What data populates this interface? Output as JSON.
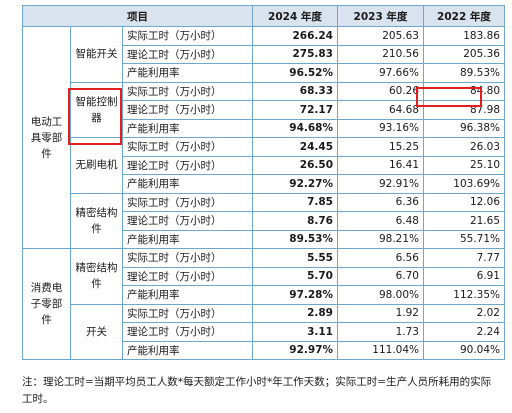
{
  "table": {
    "header": [
      "项目",
      "2024 年度",
      "2023 年度",
      "2022 年度"
    ],
    "groups": [
      {
        "name": "电动工具零部件",
        "subs": [
          {
            "name": "智能开关",
            "rows": [
              {
                "metric": "实际工时（万小时）",
                "v2024": "266.24",
                "v2023": "205.63",
                "v2022": "183.86"
              },
              {
                "metric": "理论工时（万小时）",
                "v2024": "275.83",
                "v2023": "210.56",
                "v2022": "205.36"
              },
              {
                "metric": "产能利用率",
                "v2024": "96.52%",
                "v2023": "97.66%",
                "v2022": "89.53%"
              }
            ]
          },
          {
            "name": "智能控制器",
            "rows": [
              {
                "metric": "实际工时（万小时）",
                "v2024": "68.33",
                "v2023": "60.26",
                "v2022": "84.80"
              },
              {
                "metric": "理论工时（万小时）",
                "v2024": "72.17",
                "v2023": "64.68",
                "v2022": "87.98"
              },
              {
                "metric": "产能利用率",
                "v2024": "94.68%",
                "v2023": "93.16%",
                "v2022": "96.38%"
              }
            ]
          },
          {
            "name": "无刷电机",
            "rows": [
              {
                "metric": "实际工时（万小时）",
                "v2024": "24.45",
                "v2023": "15.25",
                "v2022": "26.03"
              },
              {
                "metric": "理论工时（万小时）",
                "v2024": "26.50",
                "v2023": "16.41",
                "v2022": "25.10"
              },
              {
                "metric": "产能利用率",
                "v2024": "92.27%",
                "v2023": "92.91%",
                "v2022": "103.69%"
              }
            ]
          },
          {
            "name": "精密结构件",
            "rows": [
              {
                "metric": "实际工时（万小时）",
                "v2024": "7.85",
                "v2023": "6.36",
                "v2022": "12.06"
              },
              {
                "metric": "理论工时（万小时）",
                "v2024": "8.76",
                "v2023": "6.48",
                "v2022": "21.65"
              },
              {
                "metric": "产能利用率",
                "v2024": "89.53%",
                "v2023": "98.21%",
                "v2022": "55.71%"
              }
            ]
          }
        ]
      },
      {
        "name": "消费电子零部件",
        "subs": [
          {
            "name": "精密结构件",
            "rows": [
              {
                "metric": "实际工时（万小时）",
                "v2024": "5.55",
                "v2023": "6.56",
                "v2022": "7.77"
              },
              {
                "metric": "理论工时（万小时）",
                "v2024": "5.70",
                "v2023": "6.70",
                "v2022": "6.91"
              },
              {
                "metric": "产能利用率",
                "v2024": "97.28%",
                "v2023": "98.00%",
                "v2022": "112.35%"
              }
            ]
          },
          {
            "name": "开关",
            "rows": [
              {
                "metric": "实际工时（万小时）",
                "v2024": "2.89",
                "v2023": "1.92",
                "v2022": "2.02"
              },
              {
                "metric": "理论工时（万小时）",
                "v2024": "3.11",
                "v2023": "1.73",
                "v2022": "2.24"
              },
              {
                "metric": "产能利用率",
                "v2024": "92.97%",
                "v2023": "111.04%",
                "v2022": "90.04%"
              }
            ]
          }
        ]
      }
    ]
  },
  "note": "注：理论工时=当期平均员工人数*每天额定工作小时*年工作天数；实际工时=生产人员所耗用的实际工时。",
  "colors": {
    "border": "#6fa7c9",
    "header_bg": "#d8e3ee",
    "highlight": "#e02020"
  }
}
